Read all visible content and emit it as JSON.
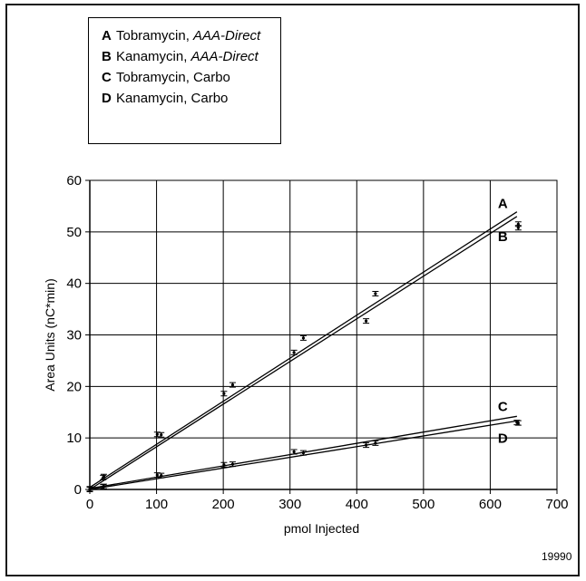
{
  "figure_id": "19990",
  "legend": [
    {
      "key": "A",
      "text": "Tobramycin, ",
      "detail": "AAA-Direct"
    },
    {
      "key": "B",
      "text": "Kanamycin, ",
      "detail": "AAA-Direct"
    },
    {
      "key": "C",
      "text": "Tobramycin, Carbo",
      "detail": ""
    },
    {
      "key": "D",
      "text": "Kanamycin, Carbo",
      "detail": ""
    }
  ],
  "chart_data": {
    "type": "scatter",
    "title": "",
    "xlabel": "pmol Injected",
    "ylabel": "Area Units (nC*min)",
    "xlim": [
      0,
      700
    ],
    "ylim": [
      0,
      60
    ],
    "xticks": [
      0,
      100,
      200,
      300,
      400,
      500,
      600,
      700
    ],
    "yticks": [
      0,
      10,
      20,
      30,
      40,
      50,
      60
    ],
    "grid": true,
    "legend_position": "top-left",
    "series": [
      {
        "name": "A",
        "color": "#000000",
        "points": [
          [
            0,
            0.1
          ],
          [
            21,
            2.5
          ],
          [
            107,
            10.6
          ],
          [
            214,
            20.3
          ],
          [
            320,
            29.4
          ],
          [
            428,
            38.0
          ],
          [
            642,
            51.5
          ]
        ],
        "fit": [
          [
            0,
            0.4
          ],
          [
            640,
            53.9
          ]
        ]
      },
      {
        "name": "B",
        "color": "#000000",
        "points": [
          [
            0,
            0.1
          ],
          [
            20,
            2.3
          ],
          [
            101,
            10.7
          ],
          [
            201,
            18.6
          ],
          [
            306,
            26.6
          ],
          [
            414,
            32.7
          ],
          [
            642,
            50.8
          ]
        ],
        "fit": [
          [
            0,
            0.0
          ],
          [
            640,
            53.0
          ]
        ]
      },
      {
        "name": "C",
        "color": "#000000",
        "points": [
          [
            0,
            0.0
          ],
          [
            21,
            0.6
          ],
          [
            107,
            2.7
          ],
          [
            214,
            4.9
          ],
          [
            320,
            7.1
          ],
          [
            428,
            9.0
          ],
          [
            642,
            12.9
          ]
        ],
        "fit": [
          [
            0,
            0.2
          ],
          [
            640,
            14.2
          ]
        ]
      },
      {
        "name": "D",
        "color": "#000000",
        "points": [
          [
            0,
            0.0
          ],
          [
            20,
            0.5
          ],
          [
            101,
            2.8
          ],
          [
            201,
            4.8
          ],
          [
            306,
            7.3
          ],
          [
            414,
            8.6
          ],
          [
            640,
            13.0
          ]
        ],
        "fit": [
          [
            0,
            0.0
          ],
          [
            640,
            13.3
          ]
        ]
      }
    ]
  }
}
